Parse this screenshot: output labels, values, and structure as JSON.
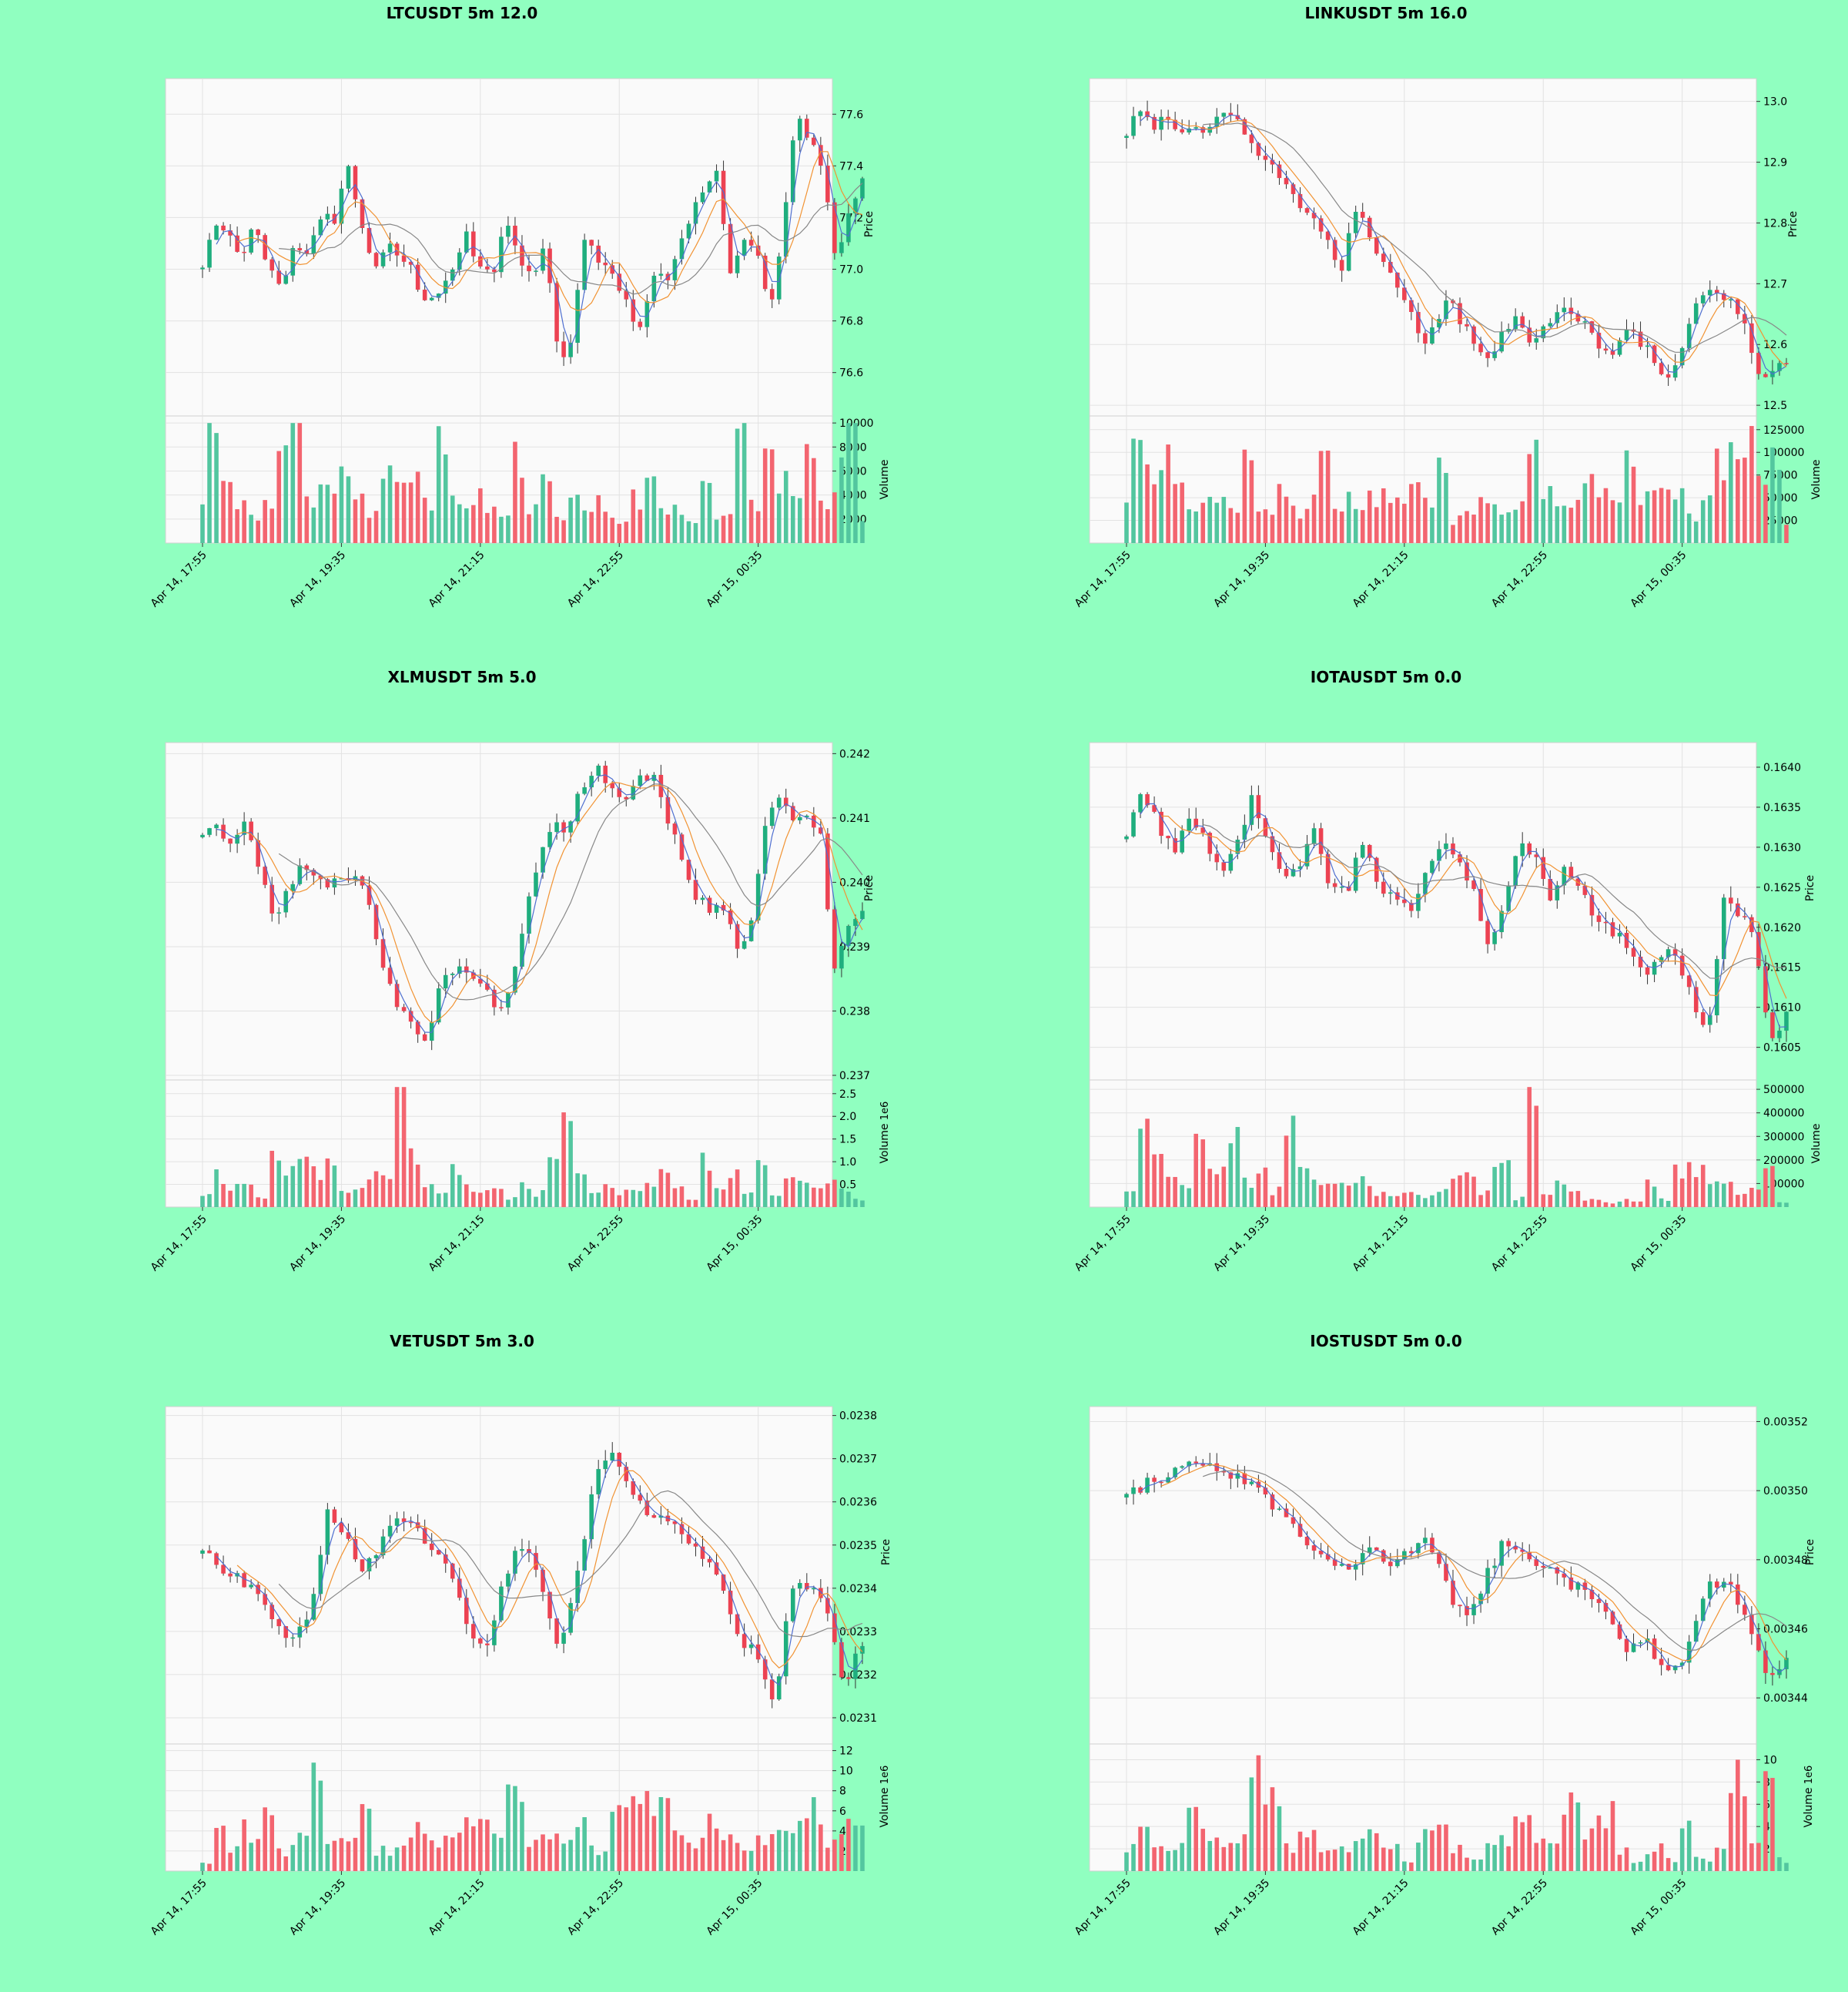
{
  "figure": {
    "background": "#90ffc0",
    "plot_background": "#fafafa",
    "up_color": "#1fae7e",
    "down_color": "#ec4252",
    "up_volume_color": "#53c69f",
    "down_volume_color": "#f36570",
    "ma_colors": [
      "#4f6fd0",
      "#f19333",
      "#888888"
    ],
    "x_tick_labels": [
      "Apr 14, 17:55",
      "Apr 14, 19:35",
      "Apr 14, 21:15",
      "Apr 14, 22:55",
      "Apr 15, 00:35"
    ]
  },
  "chart_data": [
    {
      "type": "candlestick",
      "title": "LTCUSDT 5m 12.0",
      "ylabel": "Price",
      "volume_label": "Volume",
      "volume_exponent": "",
      "price_range": [
        76.45,
        77.72
      ],
      "price_ticks": [
        "76.6",
        "76.8",
        "77.0",
        "77.2",
        "77.4",
        "77.6"
      ],
      "price_path": [
        77.0,
        77.17,
        77.12,
        77.05,
        77.18,
        77.02,
        76.92,
        77.1,
        77.05,
        77.2,
        77.18,
        77.42,
        77.15,
        77.02,
        77.1,
        77.05,
        76.98,
        76.85,
        76.92,
        77.02,
        77.15,
        77.0,
        76.98,
        77.22,
        77.05,
        76.98,
        77.1,
        76.62,
        76.75,
        77.12,
        77.05,
        76.98,
        76.9,
        76.72,
        76.98,
        76.95,
        77.05,
        77.2,
        77.3,
        77.38,
        77.0,
        77.1,
        77.05,
        76.85,
        77.15,
        77.6,
        77.5,
        77.38,
        77.0,
        77.25,
        77.35
      ],
      "volume_range": [
        0,
        10200
      ],
      "volume_ticks": [
        2000,
        4000,
        6000,
        8000,
        10000
      ],
      "volume_tick_labels": [
        "2000",
        "4000",
        "6000",
        "8000",
        "10000"
      ],
      "volume_levels": [
        4000,
        10000,
        4500,
        3500,
        2500,
        3000,
        6500,
        9500,
        3000,
        5500,
        4000,
        5000,
        3500,
        3000,
        5000,
        4500,
        5500,
        3000,
        8000,
        4000,
        3500,
        4000,
        3000,
        2000,
        7500,
        3000,
        4500,
        2500,
        3500,
        3000,
        5000,
        2500,
        2000,
        3500,
        5500,
        2500,
        3000,
        2000,
        4000,
        2500,
        3000,
        10500,
        3000,
        8000,
        5000,
        3500,
        6500,
        4000,
        5500,
        9500,
        2000
      ]
    },
    {
      "type": "candlestick",
      "title": "LINKUSDT 5m 16.0",
      "ylabel": "Price",
      "volume_label": "Volume",
      "volume_exponent": "",
      "price_range": [
        12.49,
        13.03
      ],
      "price_ticks": [
        "12.5",
        "12.6",
        "12.7",
        "12.8",
        "12.9",
        "13.0"
      ],
      "price_path": [
        12.94,
        12.99,
        12.96,
        12.97,
        12.95,
        12.96,
        12.95,
        12.97,
        12.98,
        12.93,
        12.9,
        12.89,
        12.86,
        12.83,
        12.8,
        12.76,
        12.73,
        12.82,
        12.78,
        12.74,
        12.7,
        12.67,
        12.6,
        12.64,
        12.68,
        12.63,
        12.6,
        12.58,
        12.62,
        12.64,
        12.61,
        12.62,
        12.65,
        12.66,
        12.63,
        12.6,
        12.58,
        12.62,
        12.61,
        12.59,
        12.54,
        12.57,
        12.65,
        12.68,
        12.69,
        12.66,
        12.63,
        12.55,
        12.56,
        12.57
      ],
      "volume_range": [
        0,
        135000
      ],
      "volume_ticks": [
        25000,
        50000,
        75000,
        100000,
        125000
      ],
      "volume_tick_labels": [
        "25000",
        "50000",
        "75000",
        "100000",
        "125000"
      ],
      "volume_levels": [
        55000,
        108000,
        70000,
        88000,
        55000,
        35000,
        62000,
        45000,
        40000,
        88000,
        48000,
        40000,
        72000,
        38000,
        46000,
        85000,
        36000,
        48000,
        45000,
        55000,
        60000,
        45000,
        55000,
        40000,
        85000,
        25000,
        28000,
        40000,
        35000,
        45000,
        42000,
        135000,
        58000,
        32000,
        38000,
        75000,
        48000,
        55000,
        82000,
        46000,
        55000,
        50000,
        48000,
        26000,
        42000,
        85000,
        95000,
        110000,
        75000,
        100000,
        18000
      ],
      "price_path_note": ""
    },
    {
      "type": "candlestick",
      "title": "XLMUSDT 5m 5.0",
      "ylabel": "Price",
      "volume_label": "Volume",
      "volume_exponent": "1e6",
      "price_range": [
        0.237,
        0.2421
      ],
      "price_ticks": [
        "0.237",
        "0.238",
        "0.239",
        "0.240",
        "0.241",
        "0.242"
      ],
      "price_path": [
        0.2407,
        0.2408,
        0.2406,
        0.2409,
        0.2402,
        0.2395,
        0.2398,
        0.2403,
        0.2401,
        0.2398,
        0.2402,
        0.24,
        0.2396,
        0.2385,
        0.2381,
        0.2378,
        0.2376,
        0.2385,
        0.2387,
        0.2385,
        0.2384,
        0.238,
        0.2385,
        0.2395,
        0.2405,
        0.241,
        0.2408,
        0.2415,
        0.2418,
        0.2414,
        0.2412,
        0.2416,
        0.2417,
        0.241,
        0.2405,
        0.2398,
        0.2396,
        0.2397,
        0.239,
        0.2393,
        0.2408,
        0.2414,
        0.2409,
        0.241,
        0.2408,
        0.2386,
        0.2393,
        0.2396
      ],
      "volume_range": [
        0,
        2.7
      ],
      "volume_ticks": [
        0.5,
        1.0,
        1.5,
        2.0,
        2.5
      ],
      "volume_tick_labels": [
        "0.5",
        "1.0",
        "1.5",
        "2.0",
        "2.5"
      ],
      "volume_levels": [
        0.3,
        0.7,
        0.5,
        0.6,
        0.2,
        1.2,
        0.7,
        0.9,
        0.7,
        0.9,
        0.3,
        0.5,
        0.7,
        0.6,
        2.6,
        1.1,
        0.4,
        0.3,
        0.9,
        0.4,
        0.4,
        0.5,
        0.2,
        0.5,
        0.3,
        1.0,
        2.5,
        0.6,
        0.4,
        0.5,
        0.3,
        0.3,
        0.5,
        0.7,
        0.4,
        0.2,
        1.0,
        0.4,
        0.9,
        0.4,
        1.0,
        0.3,
        0.9,
        0.5,
        0.5,
        0.5,
        0.4,
        0.2
      ]
    },
    {
      "type": "candlestick",
      "title": "IOTAUSDT 5m 0.0",
      "ylabel": "Price",
      "volume_label": "Volume",
      "volume_exponent": "",
      "price_range": [
        0.16015,
        0.16425
      ],
      "price_ticks": [
        "0.1605",
        "0.1610",
        "0.1615",
        "0.1620",
        "0.1625",
        "0.1630",
        "0.1635",
        "0.1640"
      ],
      "price_path": [
        0.1631,
        0.1637,
        0.1633,
        0.1629,
        0.1634,
        0.1631,
        0.1627,
        0.1631,
        0.1636,
        0.1631,
        0.1626,
        0.1628,
        0.1632,
        0.1625,
        0.1624,
        0.1631,
        0.1626,
        0.1623,
        0.1622,
        0.1626,
        0.1631,
        0.1628,
        0.1625,
        0.1617,
        0.1622,
        0.1631,
        0.1629,
        0.1623,
        0.1628,
        0.1624,
        0.1621,
        0.1619,
        0.1618,
        0.1613,
        0.1617,
        0.1617,
        0.1611,
        0.1606,
        0.1624,
        0.1622,
        0.1619,
        0.1605,
        0.161
      ],
      "volume_range": [
        0,
        520000
      ],
      "volume_ticks": [
        100000,
        200000,
        300000,
        400000,
        500000
      ],
      "volume_tick_labels": [
        "100000",
        "200000",
        "300000",
        "400000",
        "500000"
      ],
      "volume_levels": [
        80000,
        460000,
        200000,
        120000,
        100000,
        290000,
        140000,
        300000,
        110000,
        200000,
        70000,
        310000,
        180000,
        130000,
        140000,
        90000,
        110000,
        60000,
        40000,
        50000,
        40000,
        60000,
        150000,
        120000,
        60000,
        190000,
        40000,
        510000,
        60000,
        90000,
        60000,
        30000,
        20000,
        30000,
        20000,
        90000,
        30000,
        150000,
        160000,
        130000,
        110000,
        70000,
        90000,
        140000,
        20000
      ]
    },
    {
      "type": "candlestick",
      "title": "VETUSDT 5m 3.0",
      "ylabel": "Price",
      "volume_label": "Volume",
      "volume_exponent": "1e6",
      "price_range": [
        0.02305,
        0.02381
      ],
      "price_ticks": [
        "0.0231",
        "0.0232",
        "0.0233",
        "0.0234",
        "0.0235",
        "0.0236",
        "0.0237",
        "0.0238"
      ],
      "price_path": [
        0.02348,
        0.02345,
        0.02343,
        0.02338,
        0.02333,
        0.02327,
        0.02335,
        0.02357,
        0.02352,
        0.02345,
        0.0235,
        0.02356,
        0.02353,
        0.02348,
        0.02344,
        0.0233,
        0.02326,
        0.02344,
        0.0235,
        0.0234,
        0.02324,
        0.02342,
        0.02365,
        0.02372,
        0.02362,
        0.02358,
        0.02355,
        0.02352,
        0.02348,
        0.02343,
        0.02328,
        0.02325,
        0.02312,
        0.02339,
        0.02341,
        0.02335,
        0.02318,
        0.02328
      ],
      "volume_range": [
        0,
        12.2
      ],
      "volume_ticks": [
        2,
        4,
        6,
        8,
        10,
        12
      ],
      "volume_tick_labels": [
        "2",
        "4",
        "6",
        "8",
        "10",
        "12"
      ],
      "volume_levels": [
        1,
        5,
        2,
        4,
        5,
        2,
        3,
        11,
        3,
        3,
        6,
        2,
        3,
        4,
        3,
        3,
        5,
        5,
        3,
        8,
        3,
        3,
        3,
        6,
        2,
        7,
        6,
        7,
        6,
        4,
        3,
        6,
        3,
        2,
        3,
        5,
        4,
        6,
        3,
        5,
        4
      ]
    },
    {
      "type": "candlestick",
      "title": "IOSTUSDT 5m 0.0",
      "ylabel": "Price",
      "volume_label": "Volume",
      "volume_exponent": "1e6",
      "price_range": [
        0.003428,
        0.003523
      ],
      "price_ticks": [
        "0.00344",
        "0.00346",
        "0.00348",
        "0.00350",
        "0.00352"
      ],
      "price_path": [
        0.003498,
        0.003502,
        0.003504,
        0.00351,
        0.003508,
        0.003506,
        0.003502,
        0.003498,
        0.003492,
        0.003486,
        0.003482,
        0.003476,
        0.003484,
        0.003478,
        0.003482,
        0.003486,
        0.003472,
        0.003462,
        0.003476,
        0.003486,
        0.003482,
        0.003478,
        0.003474,
        0.00347,
        0.003466,
        0.003454,
        0.003456,
        0.003446,
        0.003452,
        0.003472,
        0.003474,
        0.003462,
        0.003446,
        0.00345
      ],
      "volume_range": [
        0,
        11
      ],
      "volume_ticks": [
        2,
        4,
        6,
        8,
        10
      ],
      "volume_tick_labels": [
        "2",
        "4",
        "6",
        "8",
        "10"
      ],
      "volume_levels": [
        2,
        4,
        3,
        2,
        5,
        3,
        3,
        3,
        8,
        6,
        2,
        3,
        2,
        2,
        3,
        4,
        2,
        1,
        3,
        4,
        2,
        1,
        2,
        3,
        4,
        3,
        2,
        6,
        3,
        5,
        2,
        1,
        2,
        1,
        4,
        1,
        2,
        9,
        2,
        10,
        1
      ]
    }
  ]
}
